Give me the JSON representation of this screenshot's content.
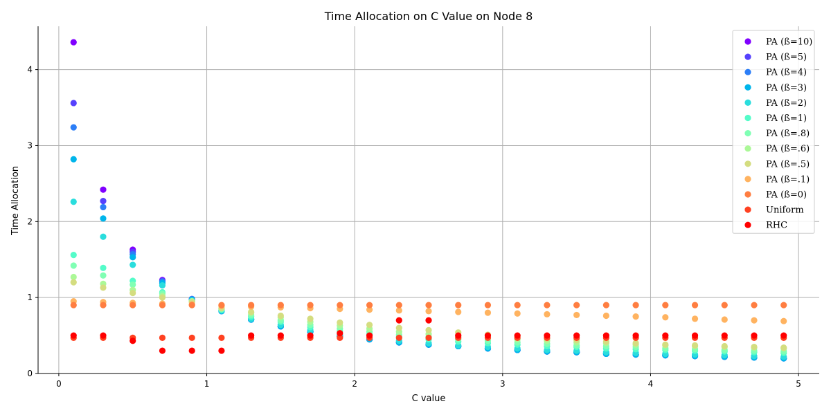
{
  "chart_data": {
    "type": "scatter",
    "title": "Time Allocation on C Value on Node 8",
    "xlabel": "C value",
    "ylabel": "Time Allocation",
    "xlim": [
      -0.14,
      5.14
    ],
    "ylim": [
      0,
      4.57
    ],
    "xticks": [
      0,
      1,
      2,
      3,
      4,
      5
    ],
    "yticks": [
      0,
      1,
      2,
      3,
      4
    ],
    "grid": true,
    "legend_position": "top-right",
    "x": [
      0.1,
      0.3,
      0.5,
      0.7,
      0.9,
      1.1,
      1.3,
      1.5,
      1.7,
      1.9,
      2.1,
      2.3,
      2.5,
      2.7,
      2.9,
      3.1,
      3.3,
      3.5,
      3.7,
      3.9,
      4.1,
      4.3,
      4.5,
      4.7,
      4.9
    ],
    "series": [
      {
        "name": "PA (ß=10)",
        "color": "#8000ff",
        "values": [
          4.36,
          2.42,
          1.63,
          1.23,
          0.98,
          0.83,
          0.71,
          0.62,
          0.55,
          0.49,
          0.45,
          0.41,
          0.38,
          0.36,
          0.33,
          0.31,
          0.29,
          0.28,
          0.26,
          0.25,
          0.24,
          0.23,
          0.22,
          0.21,
          0.2
        ]
      },
      {
        "name": "PA (ß=5)",
        "color": "#5641fd",
        "values": [
          3.56,
          2.27,
          1.6,
          1.22,
          0.98,
          0.82,
          0.71,
          0.62,
          0.55,
          0.49,
          0.45,
          0.41,
          0.38,
          0.36,
          0.33,
          0.31,
          0.29,
          0.28,
          0.26,
          0.25,
          0.24,
          0.23,
          0.22,
          0.21,
          0.2
        ]
      },
      {
        "name": "PA (ß=4)",
        "color": "#2c7ef7",
        "values": [
          3.24,
          2.19,
          1.57,
          1.21,
          0.98,
          0.82,
          0.71,
          0.62,
          0.55,
          0.49,
          0.45,
          0.41,
          0.38,
          0.36,
          0.33,
          0.31,
          0.29,
          0.28,
          0.26,
          0.25,
          0.24,
          0.23,
          0.22,
          0.21,
          0.2
        ]
      },
      {
        "name": "PA (ß=3)",
        "color": "#00b5eb",
        "values": [
          2.82,
          2.04,
          1.53,
          1.19,
          0.97,
          0.82,
          0.71,
          0.62,
          0.55,
          0.49,
          0.45,
          0.41,
          0.38,
          0.36,
          0.33,
          0.31,
          0.29,
          0.28,
          0.26,
          0.25,
          0.24,
          0.23,
          0.22,
          0.21,
          0.2
        ]
      },
      {
        "name": "PA (ß=2)",
        "color": "#2adddd",
        "values": [
          2.26,
          1.8,
          1.43,
          1.16,
          0.96,
          0.83,
          0.72,
          0.64,
          0.57,
          0.51,
          0.47,
          0.43,
          0.4,
          0.37,
          0.35,
          0.33,
          0.31,
          0.3,
          0.28,
          0.27,
          0.26,
          0.25,
          0.24,
          0.23,
          0.22
        ]
      },
      {
        "name": "PA (ß=1)",
        "color": "#54fcc9",
        "values": [
          1.56,
          1.39,
          1.22,
          1.07,
          0.95,
          0.84,
          0.75,
          0.68,
          0.61,
          0.56,
          0.52,
          0.48,
          0.45,
          0.42,
          0.4,
          0.38,
          0.36,
          0.35,
          0.33,
          0.32,
          0.31,
          0.3,
          0.29,
          0.28,
          0.27
        ]
      },
      {
        "name": "PA (ß=.8)",
        "color": "#80ffb4",
        "values": [
          1.42,
          1.29,
          1.17,
          1.05,
          0.95,
          0.85,
          0.77,
          0.7,
          0.64,
          0.59,
          0.55,
          0.51,
          0.48,
          0.45,
          0.43,
          0.41,
          0.39,
          0.37,
          0.36,
          0.35,
          0.33,
          0.32,
          0.31,
          0.3,
          0.29
        ]
      },
      {
        "name": "PA (ß=.6)",
        "color": "#abf897",
        "values": [
          1.27,
          1.18,
          1.1,
          1.02,
          0.95,
          0.86,
          0.8,
          0.74,
          0.68,
          0.63,
          0.59,
          0.55,
          0.52,
          0.49,
          0.47,
          0.45,
          0.43,
          0.41,
          0.4,
          0.38,
          0.37,
          0.36,
          0.35,
          0.34,
          0.33
        ]
      },
      {
        "name": "PA (ß=.5)",
        "color": "#d4dd80",
        "values": [
          1.2,
          1.13,
          1.06,
          1.0,
          0.94,
          0.86,
          0.81,
          0.76,
          0.72,
          0.67,
          0.64,
          0.6,
          0.57,
          0.54,
          0.51,
          0.49,
          0.46,
          0.44,
          0.42,
          0.4,
          0.38,
          0.37,
          0.36,
          0.35,
          0.34
        ]
      },
      {
        "name": "PA (ß=.1)",
        "color": "#ffb360",
        "values": [
          0.95,
          0.94,
          0.93,
          0.92,
          0.91,
          0.89,
          0.88,
          0.87,
          0.86,
          0.85,
          0.84,
          0.83,
          0.82,
          0.81,
          0.8,
          0.79,
          0.78,
          0.77,
          0.76,
          0.75,
          0.74,
          0.72,
          0.71,
          0.7,
          0.69
        ]
      },
      {
        "name": "PA (ß=0)",
        "color": "#ff7e41",
        "values": [
          0.9,
          0.9,
          0.9,
          0.9,
          0.9,
          0.9,
          0.9,
          0.9,
          0.9,
          0.9,
          0.9,
          0.9,
          0.9,
          0.9,
          0.9,
          0.9,
          0.9,
          0.9,
          0.9,
          0.9,
          0.9,
          0.9,
          0.9,
          0.9,
          0.9
        ]
      },
      {
        "name": "Uniform",
        "color": "#ff4121",
        "values": [
          0.47,
          0.47,
          0.47,
          0.47,
          0.47,
          0.47,
          0.47,
          0.47,
          0.47,
          0.47,
          0.47,
          0.47,
          0.47,
          0.47,
          0.47,
          0.47,
          0.47,
          0.47,
          0.47,
          0.47,
          0.47,
          0.47,
          0.47,
          0.47,
          0.47
        ]
      },
      {
        "name": "RHC",
        "color": "#ff0000",
        "values": [
          0.5,
          0.5,
          0.43,
          0.3,
          0.3,
          0.3,
          0.5,
          0.5,
          0.5,
          0.53,
          0.5,
          0.7,
          0.7,
          0.5,
          0.5,
          0.5,
          0.5,
          0.5,
          0.5,
          0.5,
          0.5,
          0.5,
          0.5,
          0.5,
          0.5
        ]
      }
    ]
  }
}
